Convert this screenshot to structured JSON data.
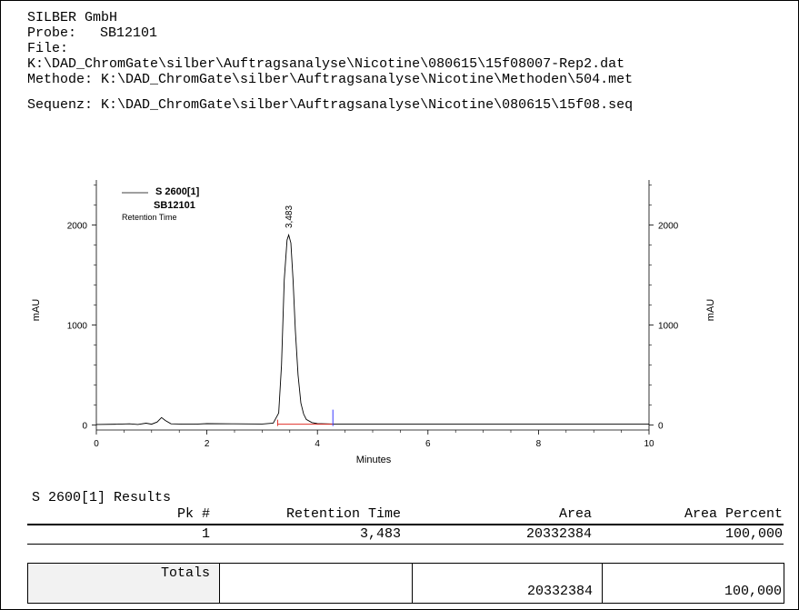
{
  "header": {
    "company": "SILBER GmbH",
    "probe_label": "Probe:",
    "probe_value": "SB12101",
    "file_label": "File:",
    "file_path": "K:\\DAD_ChromGate\\silber\\Auftragsanalyse\\Nicotine\\080615\\15f08007-Rep2.dat",
    "methode_label": "Methode:",
    "methode_path": "K:\\DAD_ChromGate\\silber\\Auftragsanalyse\\Nicotine\\Methoden\\504.met",
    "sequenz_label": "Sequenz:",
    "sequenz_path": "K:\\DAD_ChromGate\\silber\\Auftragsanalyse\\Nicotine\\080615\\15f08.seq"
  },
  "chart_data": {
    "type": "line",
    "xlabel": "Minutes",
    "ylabel_left": "mAU",
    "ylabel_right": "mAU",
    "xlim": [
      0,
      10
    ],
    "ylim": [
      -50,
      2450
    ],
    "x_ticks": [
      "0",
      "2",
      "4",
      "6",
      "8",
      "10"
    ],
    "y_ticks": [
      "0",
      "1000",
      "2000"
    ],
    "legend": {
      "series_name": "S 2600[1]",
      "sample": "SB12101",
      "annotation_type": "Retention Time"
    },
    "peak_label": "3,483",
    "series": [
      {
        "name": "S 2600[1]",
        "x": [
          0,
          0.4,
          0.6,
          0.75,
          0.9,
          1.0,
          1.1,
          1.18,
          1.25,
          1.35,
          1.5,
          1.8,
          2.0,
          2.5,
          3.0,
          3.2,
          3.3,
          3.35,
          3.4,
          3.45,
          3.48,
          3.52,
          3.56,
          3.6,
          3.65,
          3.7,
          3.75,
          3.8,
          3.9,
          4.0,
          4.3,
          5.0,
          7.0,
          10.0
        ],
        "values": [
          5,
          8,
          12,
          5,
          18,
          8,
          30,
          75,
          45,
          12,
          10,
          8,
          14,
          12,
          10,
          18,
          120,
          600,
          1450,
          1850,
          1900,
          1820,
          1450,
          950,
          500,
          220,
          110,
          55,
          25,
          14,
          10,
          10,
          10,
          10
        ]
      }
    ],
    "baseline": {
      "x": [
        3.28,
        4.28
      ],
      "y": [
        8,
        8
      ]
    },
    "markers": [
      3.28,
      4.28
    ]
  },
  "results": {
    "title": "S 2600[1] Results",
    "columns": [
      "Pk #",
      "Retention Time",
      "Area",
      "Area Percent"
    ],
    "rows": [
      {
        "pk": "1",
        "retention_time": "3,483",
        "area": "20332384",
        "area_percent": "100,000"
      }
    ],
    "totals_label": "Totals",
    "totals_area": "20332384",
    "totals_area_percent": "100,000"
  }
}
